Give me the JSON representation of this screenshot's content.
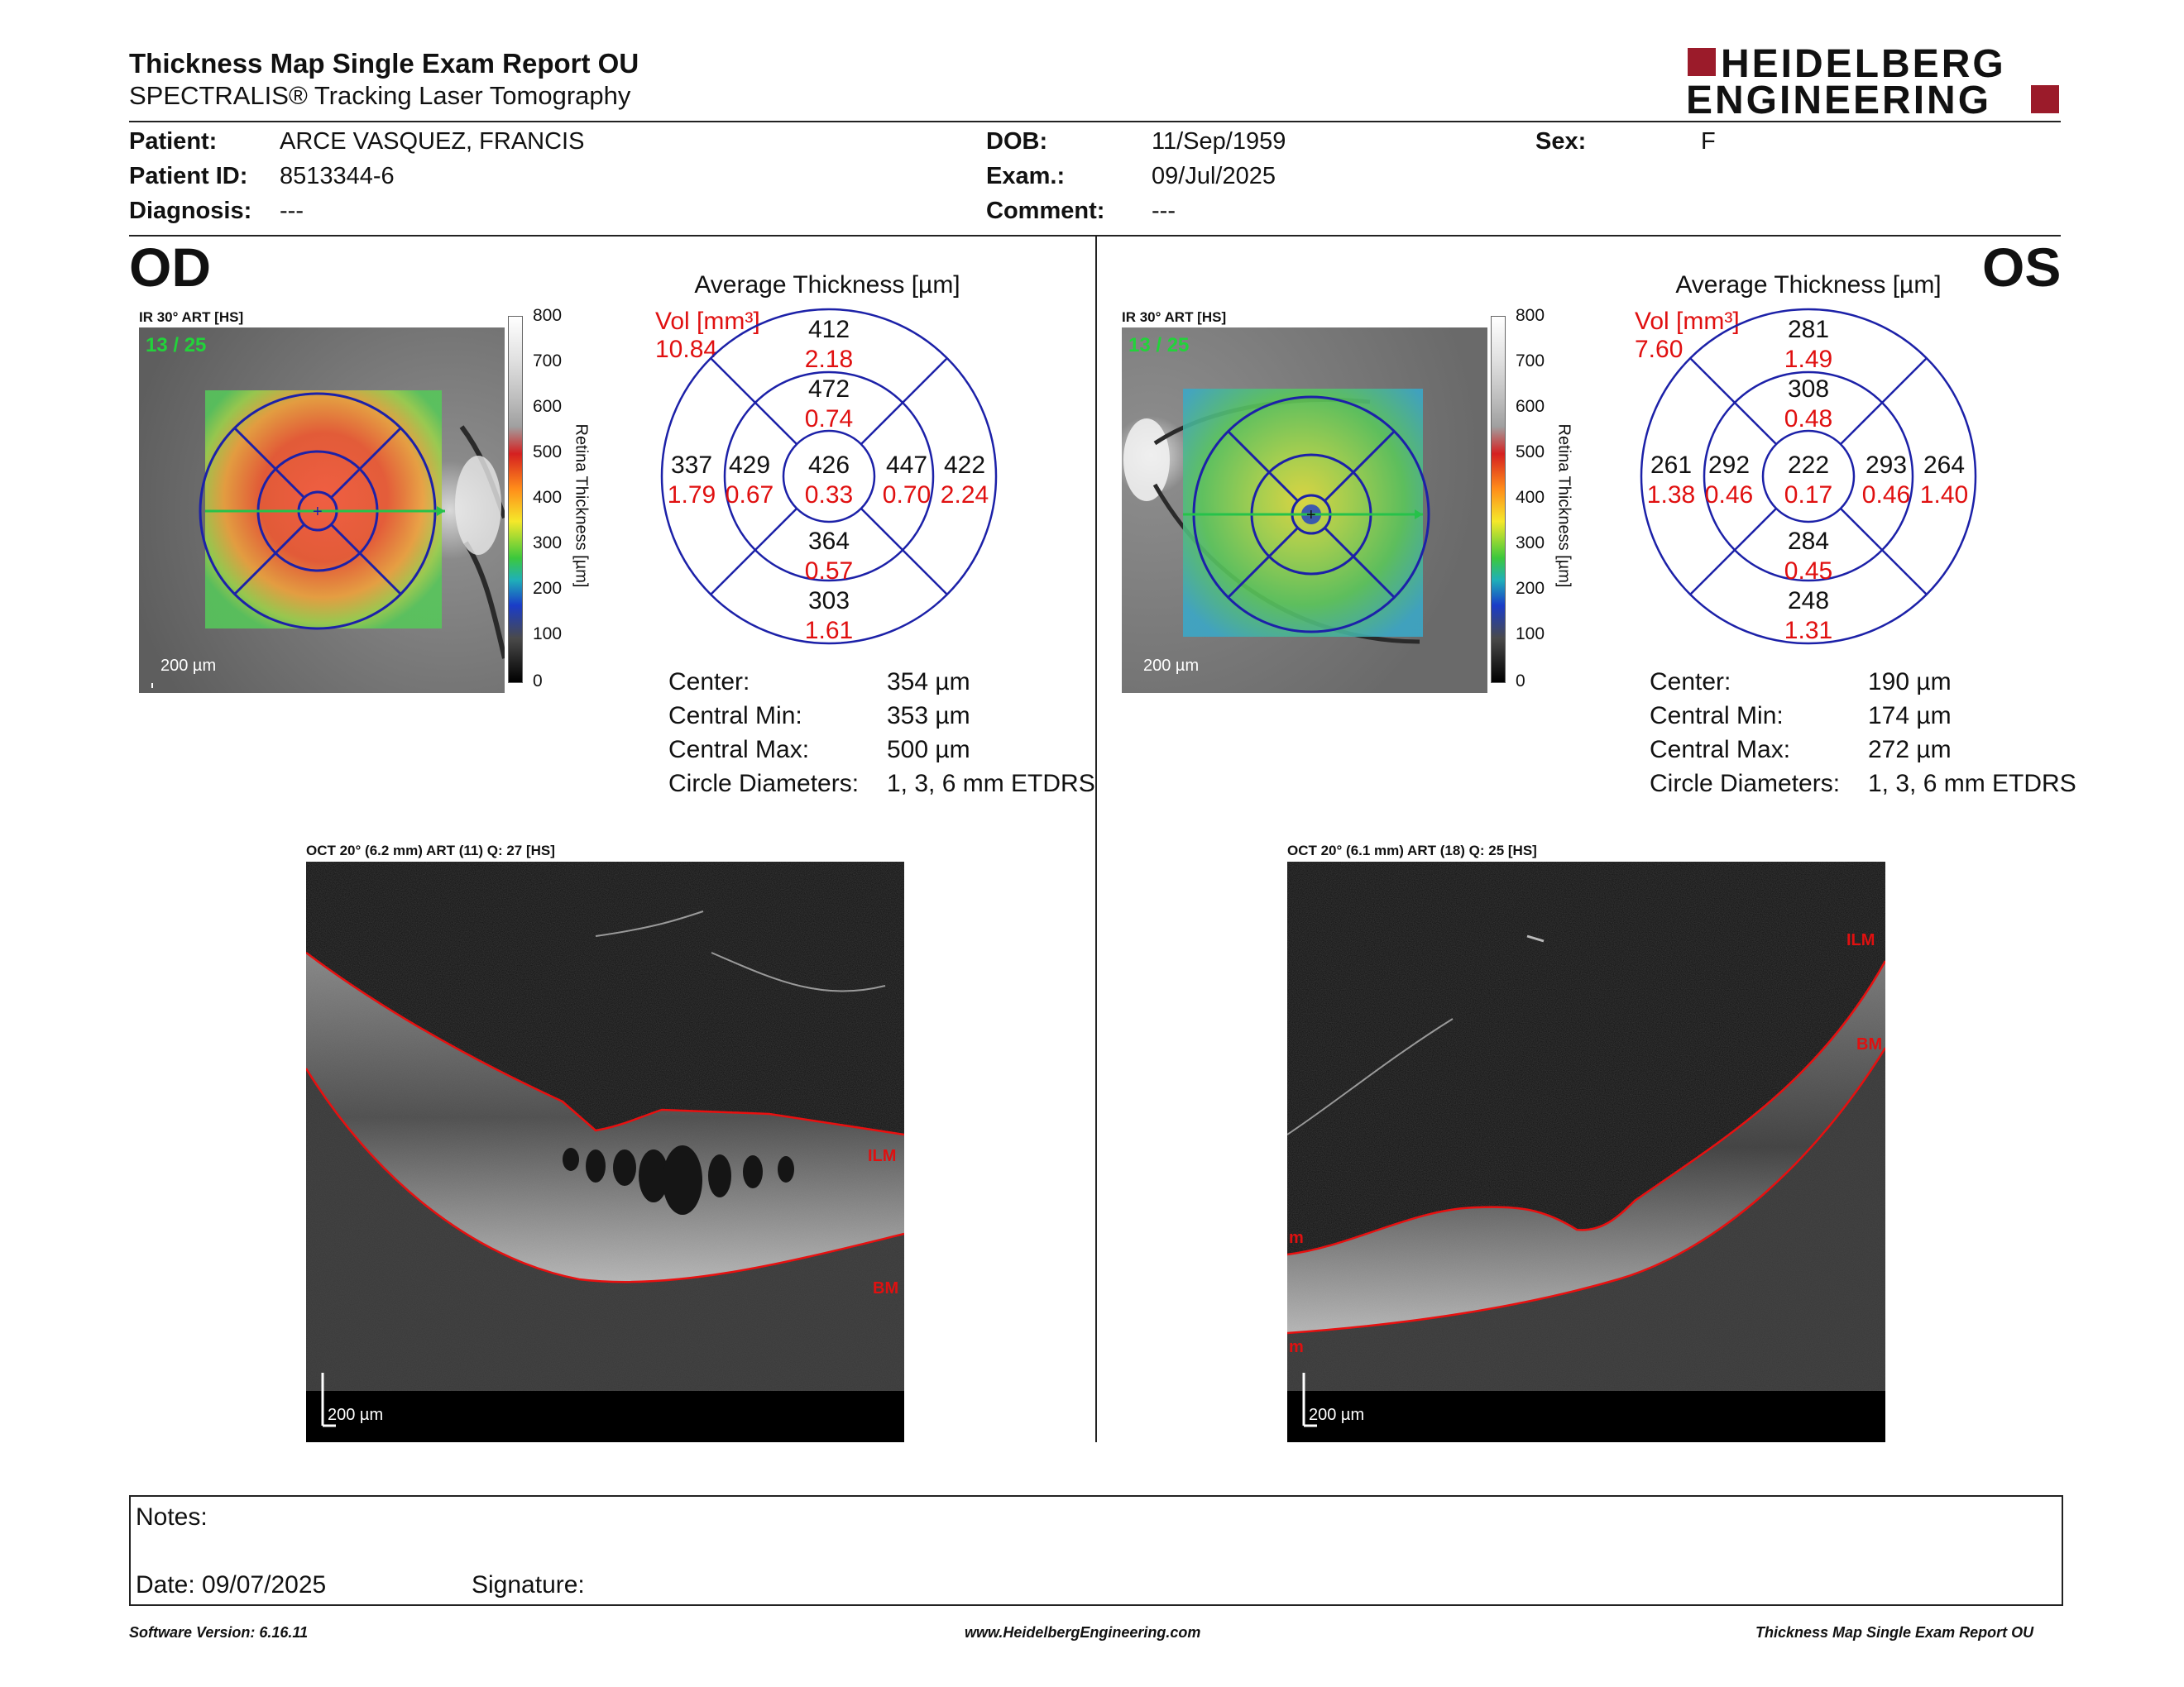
{
  "header": {
    "title": "Thickness Map Single Exam Report OU",
    "subtitle": "SPECTRALIS® Tracking Laser Tomography",
    "logo_line1": "HEIDELBERG",
    "logo_line2": "ENGINEERING",
    "brand_color": "#9b1b2a"
  },
  "patient": {
    "patient_label": "Patient:",
    "patient_value": "ARCE VASQUEZ, FRANCIS",
    "id_label": "Patient ID:",
    "id_value": "8513344-6",
    "diagnosis_label": "Diagnosis:",
    "diagnosis_value": "---",
    "dob_label": "DOB:",
    "dob_value": "11/Sep/1959",
    "exam_label": "Exam.:",
    "exam_value": "09/Jul/2025",
    "comment_label": "Comment:",
    "comment_value": "---",
    "sex_label": "Sex:",
    "sex_value": "F"
  },
  "od": {
    "eye": "OD",
    "ir_caption": "IR 30° ART [HS]",
    "frame_counter": "13 / 25",
    "scale_label": "200 µm",
    "oct_caption": "OCT 20° (6.2 mm) ART (11) Q: 27 [HS]",
    "oct_scale_label": "200 µm",
    "layer_top": "ILM",
    "layer_bottom": "BM",
    "avg_title": "Average Thickness [µm]",
    "vol_label": "Vol [mm³]",
    "vol_total": "10.84",
    "sectors": {
      "outer_top": {
        "t": "412",
        "v": "2.18"
      },
      "inner_top": {
        "t": "472",
        "v": "0.74"
      },
      "outer_left": {
        "t": "337",
        "v": "1.79"
      },
      "inner_left": {
        "t": "429",
        "v": "0.67"
      },
      "center": {
        "t": "426",
        "v": "0.33"
      },
      "inner_right": {
        "t": "447",
        "v": "0.70"
      },
      "outer_right": {
        "t": "422",
        "v": "2.24"
      },
      "inner_bottom": {
        "t": "364",
        "v": "0.57"
      },
      "outer_bottom": {
        "t": "303",
        "v": "1.61"
      }
    },
    "stats": [
      {
        "label": "Center:",
        "value": "354 µm"
      },
      {
        "label": "Central Min:",
        "value": "353 µm"
      },
      {
        "label": "Central Max:",
        "value": "500 µm"
      },
      {
        "label": "Circle Diameters:",
        "value": "1, 3, 6 mm ETDRS"
      }
    ]
  },
  "os": {
    "eye": "OS",
    "ir_caption": "IR 30° ART [HS]",
    "frame_counter": "13 / 25",
    "scale_label": "200 µm",
    "oct_caption": "OCT 20° (6.1 mm) ART (18) Q: 25 [HS]",
    "oct_scale_label": "200 µm",
    "layer_top": "ILM",
    "layer_bottom": "BM",
    "layer_left_top": "m",
    "layer_left_bottom": "m",
    "avg_title": "Average Thickness [µm]",
    "vol_label": "Vol [mm³]",
    "vol_total": "7.60",
    "sectors": {
      "outer_top": {
        "t": "281",
        "v": "1.49"
      },
      "inner_top": {
        "t": "308",
        "v": "0.48"
      },
      "outer_left": {
        "t": "261",
        "v": "1.38"
      },
      "inner_left": {
        "t": "292",
        "v": "0.46"
      },
      "center": {
        "t": "222",
        "v": "0.17"
      },
      "inner_right": {
        "t": "293",
        "v": "0.46"
      },
      "outer_right": {
        "t": "264",
        "v": "1.40"
      },
      "inner_bottom": {
        "t": "284",
        "v": "0.45"
      },
      "outer_bottom": {
        "t": "248",
        "v": "1.31"
      }
    },
    "stats": [
      {
        "label": "Center:",
        "value": "190 µm"
      },
      {
        "label": "Central Min:",
        "value": "174 µm"
      },
      {
        "label": "Central Max:",
        "value": "272 µm"
      },
      {
        "label": "Circle Diameters:",
        "value": "1, 3, 6 mm ETDRS"
      }
    ]
  },
  "colorbar": {
    "ticks": [
      "800",
      "700",
      "600",
      "500",
      "400",
      "300",
      "200",
      "100",
      "0"
    ],
    "label": "Retina Thickness [µm]"
  },
  "notes": {
    "notes_label": "Notes:",
    "date_label": "Date: 09/07/2025",
    "signature_label": "Signature:"
  },
  "footer": {
    "software": "Software Version: 6.16.11",
    "website": "www.HeidelbergEngineering.com",
    "report_name": "Thickness Map Single Exam Report OU"
  }
}
